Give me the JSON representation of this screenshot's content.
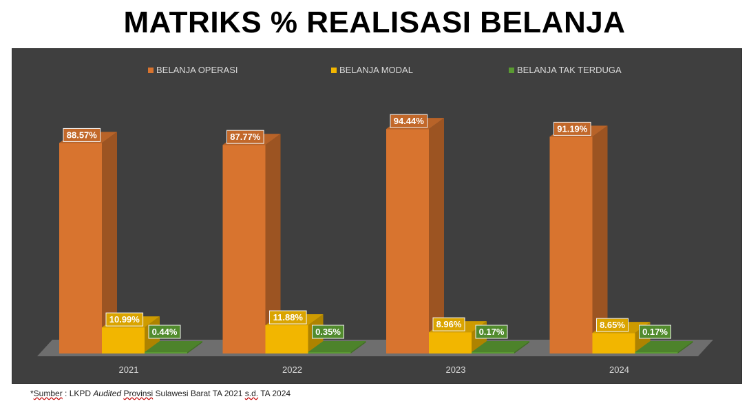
{
  "title": "MATRIKS % REALISASI BELANJA",
  "footnote": {
    "prefix": "*",
    "w1": "Sumber",
    "w2": " : LKPD ",
    "w3": "Audited",
    "w4": " ",
    "w5": "Provinsi",
    "w6": " Sulawesi Barat TA 2021 ",
    "w7": "s.d.",
    "w8": " TA 2024"
  },
  "chart_data": {
    "type": "bar",
    "title": "MATRIKS % REALISASI BELANJA",
    "categories": [
      "2021",
      "2022",
      "2023",
      "2024"
    ],
    "series": [
      {
        "name": "BELANJA OPERASI",
        "values": [
          88.57,
          87.77,
          94.44,
          91.19
        ],
        "labels": [
          "88.57%",
          "87.77%",
          "94.44%",
          "91.19%"
        ],
        "color": "#d8742f"
      },
      {
        "name": "BELANJA MODAL",
        "values": [
          10.99,
          11.88,
          8.96,
          8.65
        ],
        "labels": [
          "10.99%",
          "11.88%",
          "8.96%",
          "8.65%"
        ],
        "color": "#f2b600"
      },
      {
        "name": "BELANJA TAK TERDUGA",
        "values": [
          0.44,
          0.35,
          0.17,
          0.17
        ],
        "labels": [
          "0.44%",
          "0.35%",
          "0.17%",
          "0.17%"
        ],
        "color": "#5a9a32"
      }
    ],
    "ylim": [
      0,
      100
    ],
    "legend": "top",
    "grid": false,
    "style": "3d-clustered-column",
    "background": "#3f3f3f"
  }
}
